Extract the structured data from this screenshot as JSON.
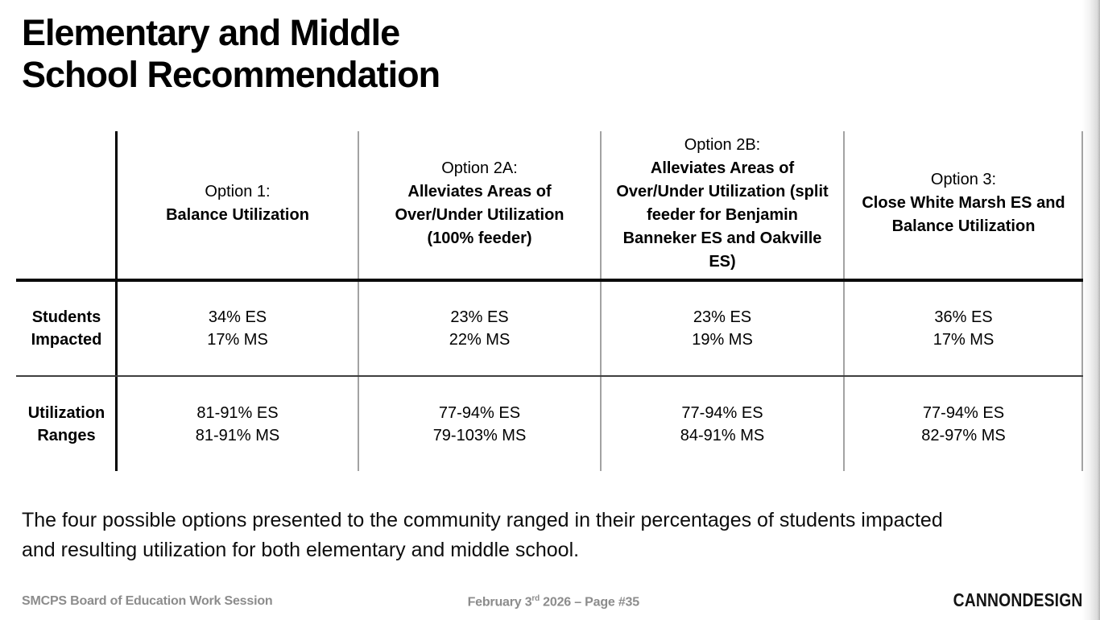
{
  "slide": {
    "title": {
      "line1": "Elementary and Middle",
      "line2": "School Recommendation"
    },
    "summary": "The four possible options presented to the community ranged in their percentages of students impacted\nand resulting utilization for both elementary and middle school."
  },
  "table": {
    "row_labels": {
      "students": "Students\nImpacted",
      "utilization": "Utilization\nRanges"
    },
    "columns": [
      {
        "header_prefix": "Option 1:",
        "header_name": "Balance Utilization",
        "students_es": "34% ES",
        "students_ms": "17% MS",
        "utilization_es": "81-91% ES",
        "utilization_ms": "81-91% MS"
      },
      {
        "header_prefix": "Option 2A:",
        "header_name": "Alleviates Areas of\nOver/Under Utilization\n(100% feeder)",
        "students_es": "23% ES",
        "students_ms": "22% MS",
        "utilization_es": "77-94% ES",
        "utilization_ms": "79-103% MS"
      },
      {
        "header_prefix": "Option 2B:",
        "header_name": "Alleviates Areas of\nOver/Under Utilization (split\nfeeder for Benjamin\nBanneker ES and Oakville\nES)",
        "students_es": "23% ES",
        "students_ms": "19% MS",
        "utilization_es": "77-94% ES",
        "utilization_ms": "84-91% MS"
      },
      {
        "header_prefix": "Option 3:",
        "header_name": "Close White Marsh ES and\nBalance Utilization",
        "students_es": "36% ES",
        "students_ms": "17% MS",
        "utilization_es": "77-94% ES",
        "utilization_ms": "82-97% MS"
      }
    ]
  },
  "footer": {
    "left": "SMCPS Board of Education Work Session",
    "center_prefix": "February 3",
    "center_sup": "rd",
    "center_suffix": " 2026 – Page #35",
    "logo": "CANNONDESIGN"
  },
  "colors": {
    "title_text": "#000000",
    "table_line_strong": "#0a0a0a",
    "table_line_light": "#a3a3a3",
    "footer_text": "#8c8c8c",
    "logo_text": "#141414"
  }
}
